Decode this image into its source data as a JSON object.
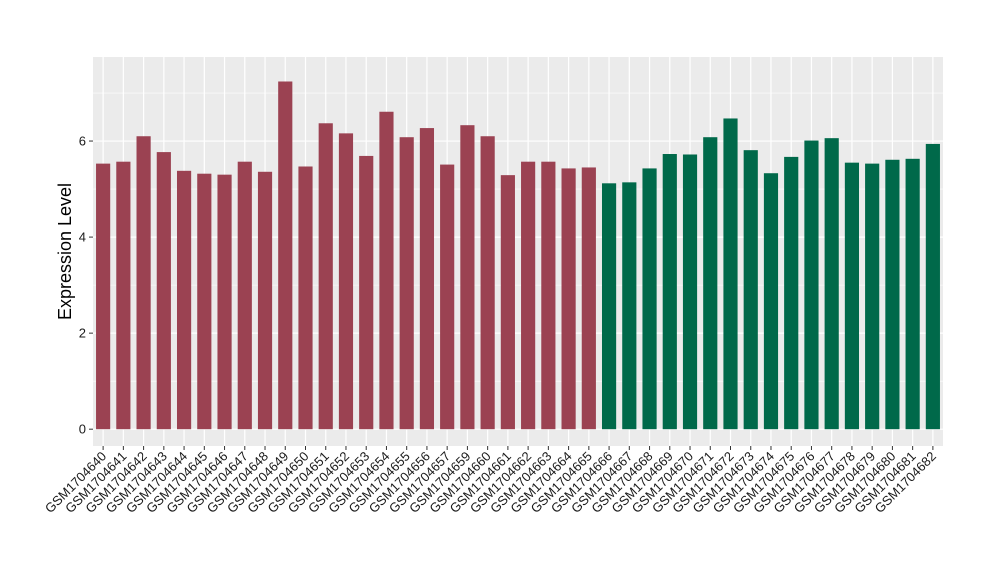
{
  "chart_data": {
    "type": "bar",
    "title": "",
    "xlabel": "",
    "ylabel": "Expression Level",
    "ylim": [
      -0.35,
      7.75
    ],
    "y_ticks": [
      0,
      2,
      4,
      6
    ],
    "grid": true,
    "background": "#ebebeb",
    "gridline_color": "#ffffff",
    "categories": [
      "GSM1704640",
      "GSM1704641",
      "GSM1704642",
      "GSM1704643",
      "GSM1704644",
      "GSM1704645",
      "GSM1704646",
      "GSM1704647",
      "GSM1704648",
      "GSM1704649",
      "GSM1704650",
      "GSM1704651",
      "GSM1704652",
      "GSM1704653",
      "GSM1704654",
      "GSM1704655",
      "GSM1704656",
      "GSM1704657",
      "GSM1704659",
      "GSM1704660",
      "GSM1704661",
      "GSM1704662",
      "GSM1704663",
      "GSM1704664",
      "GSM1704665",
      "GSM1704666",
      "GSM1704667",
      "GSM1704668",
      "GSM1704669",
      "GSM1704670",
      "GSM1704671",
      "GSM1704672",
      "GSM1704673",
      "GSM1704674",
      "GSM1704675",
      "GSM1704676",
      "GSM1704677",
      "GSM1704678",
      "GSM1704679",
      "GSM1704680",
      "GSM1704681",
      "GSM1704682"
    ],
    "values": [
      5.53,
      5.57,
      6.1,
      5.77,
      5.38,
      5.32,
      5.3,
      5.57,
      5.36,
      7.24,
      5.47,
      6.37,
      6.16,
      5.69,
      6.61,
      6.08,
      6.27,
      5.51,
      6.33,
      6.1,
      5.29,
      5.57,
      5.57,
      5.43,
      5.45,
      5.12,
      5.14,
      5.43,
      5.73,
      5.72,
      6.08,
      6.47,
      5.81,
      5.33,
      5.67,
      6.01,
      6.06,
      5.55,
      5.53,
      5.61,
      5.63,
      5.94
    ],
    "colors": [
      "#9b4252",
      "#9b4252",
      "#9b4252",
      "#9b4252",
      "#9b4252",
      "#9b4252",
      "#9b4252",
      "#9b4252",
      "#9b4252",
      "#9b4252",
      "#9b4252",
      "#9b4252",
      "#9b4252",
      "#9b4252",
      "#9b4252",
      "#9b4252",
      "#9b4252",
      "#9b4252",
      "#9b4252",
      "#9b4252",
      "#9b4252",
      "#9b4252",
      "#9b4252",
      "#9b4252",
      "#9b4252",
      "#00694a",
      "#00694a",
      "#00694a",
      "#00694a",
      "#00694a",
      "#00694a",
      "#00694a",
      "#00694a",
      "#00694a",
      "#00694a",
      "#00694a",
      "#00694a",
      "#00694a",
      "#00694a",
      "#00694a",
      "#00694a",
      "#00694a"
    ]
  }
}
